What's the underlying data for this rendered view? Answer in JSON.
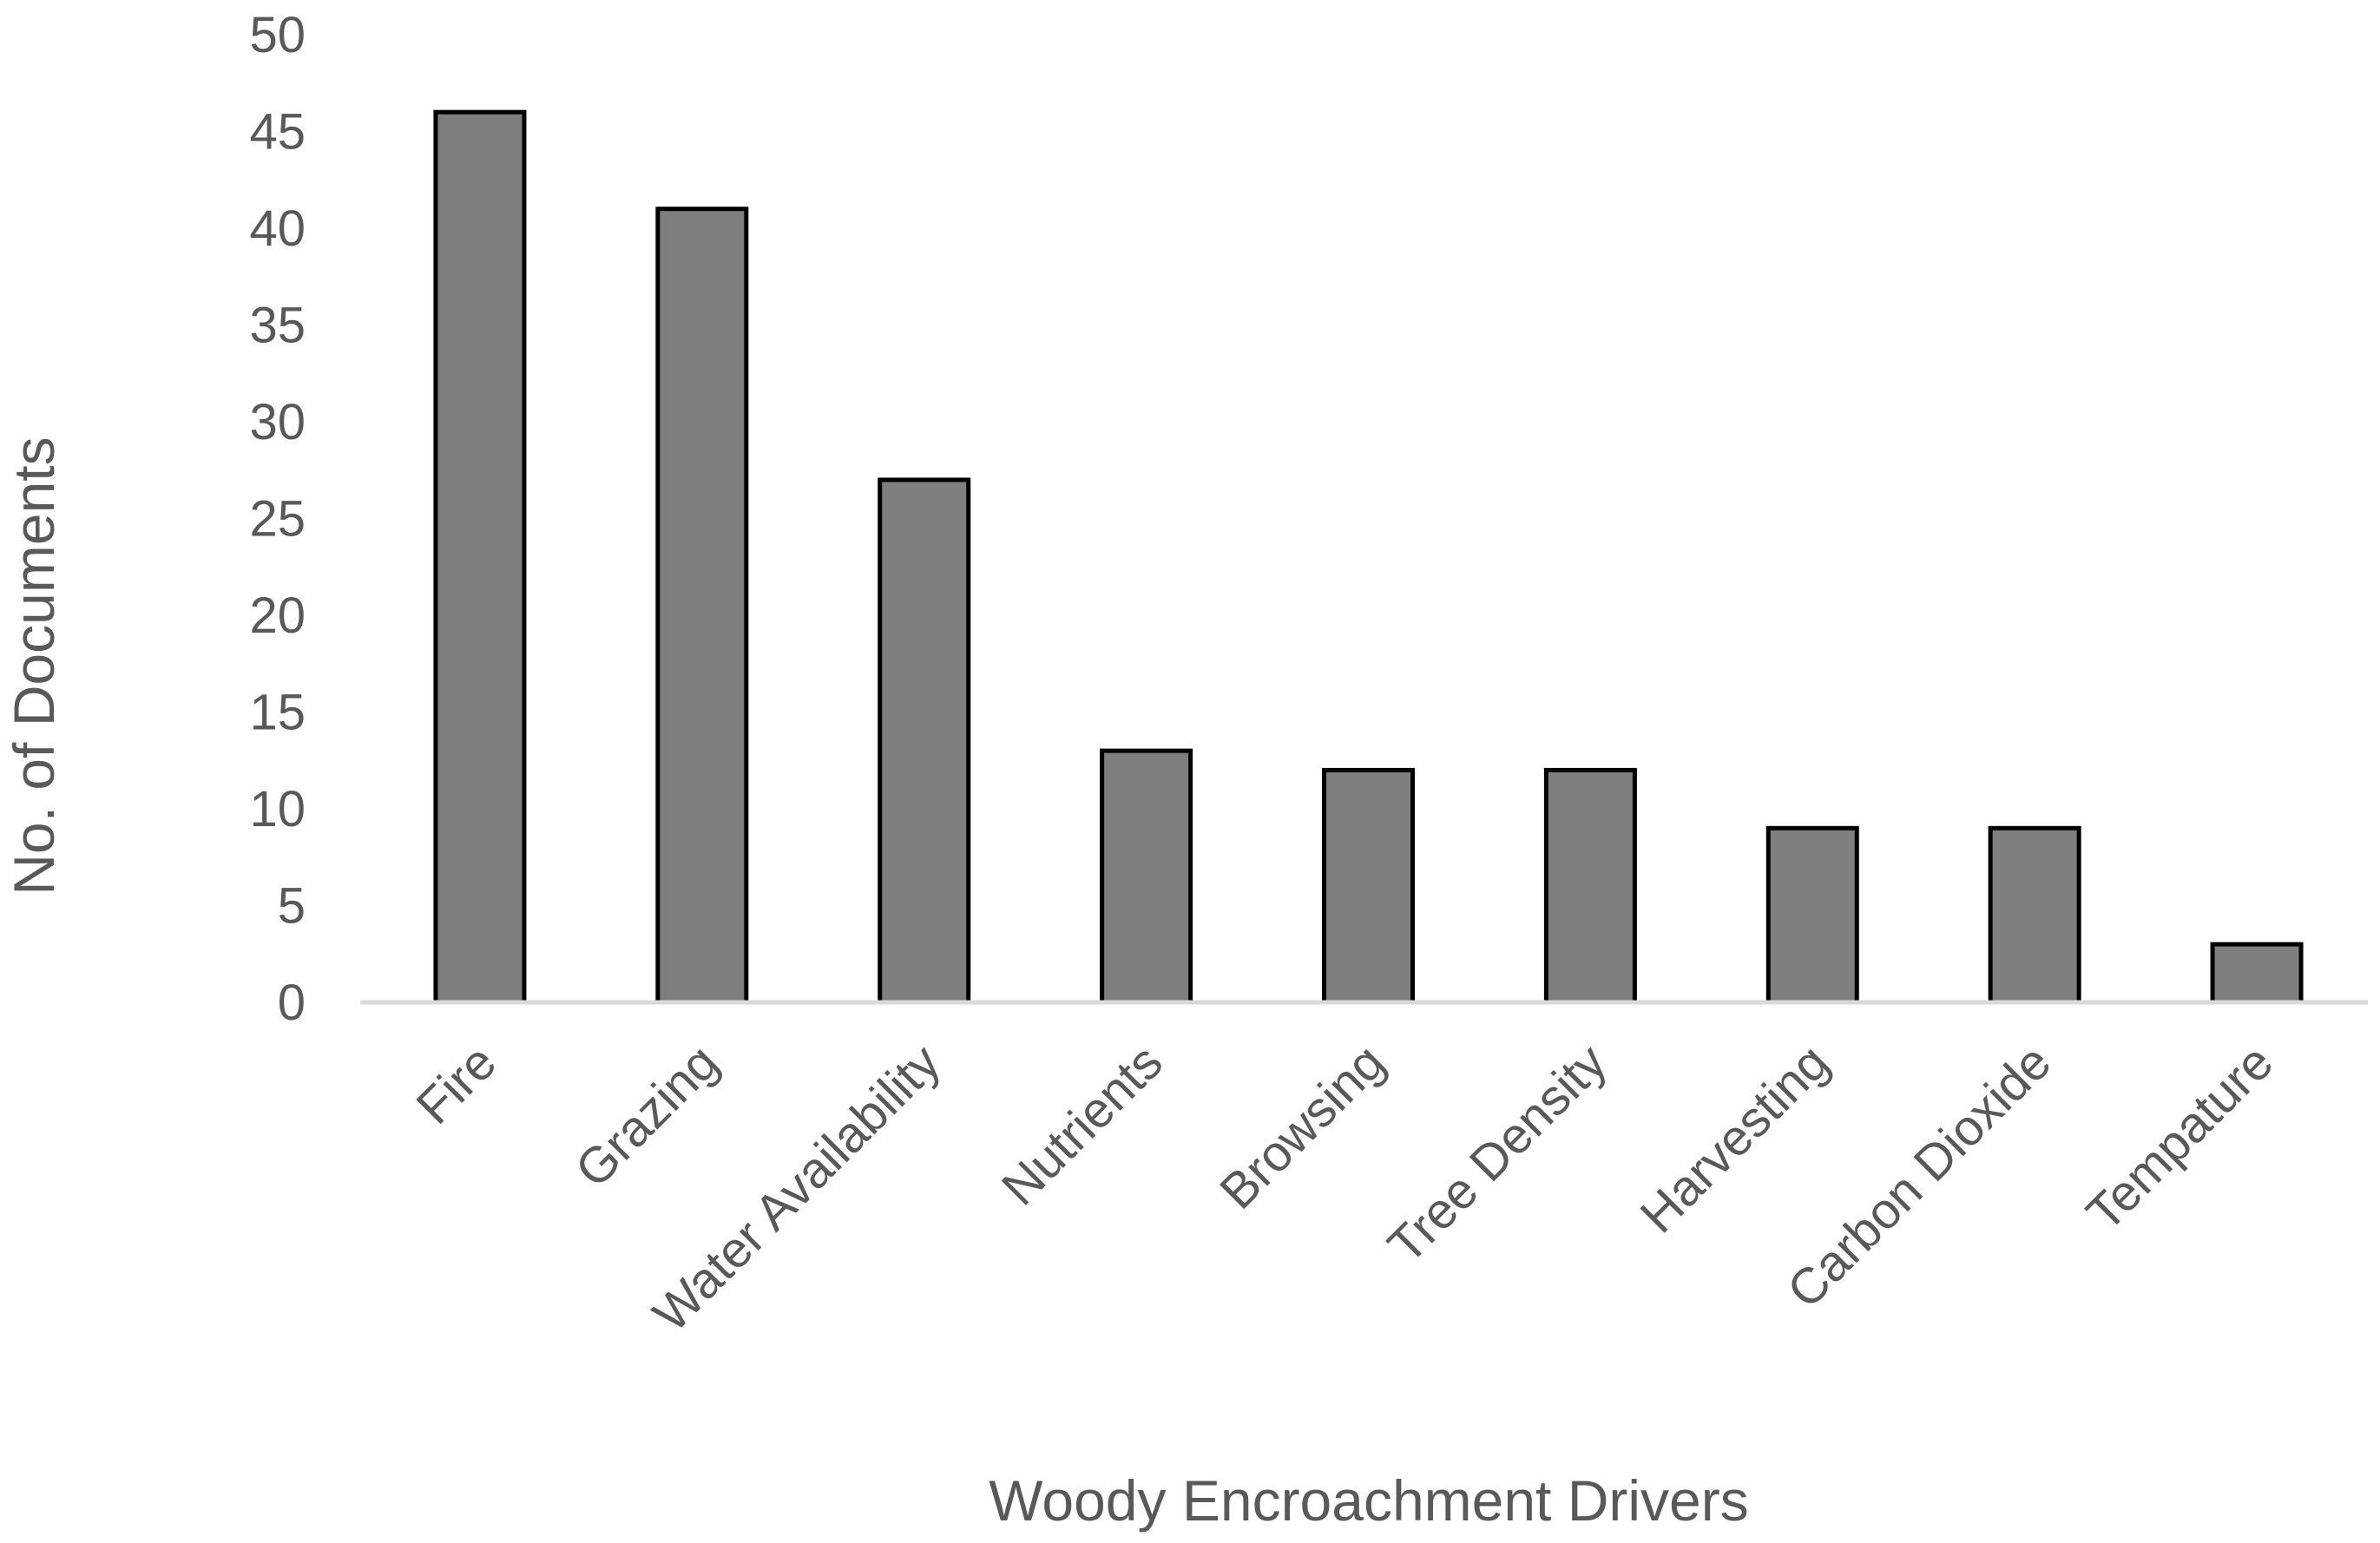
{
  "chart_data": {
    "type": "bar",
    "categories": [
      "Fire",
      "Grazing",
      "Water Availability",
      "Nutrients",
      "Browsing",
      "Tree Density",
      "Harvesting",
      "Carbon Dioxide",
      "Tempature"
    ],
    "values": [
      46,
      41,
      27,
      13,
      12,
      12,
      9,
      9,
      3
    ],
    "title": "",
    "xlabel": "Woody Encroachment Drivers",
    "ylabel": "No. of Documents",
    "ylim": [
      0,
      50
    ],
    "yticks": [
      0,
      5,
      10,
      15,
      20,
      25,
      30,
      35,
      40,
      45,
      50
    ],
    "grid": false,
    "legend": "none",
    "colors": {
      "bar_fill": "#7f7f7f",
      "bar_stroke": "#000000",
      "axis_line": "#d9d9d9",
      "text": "#595959"
    }
  }
}
